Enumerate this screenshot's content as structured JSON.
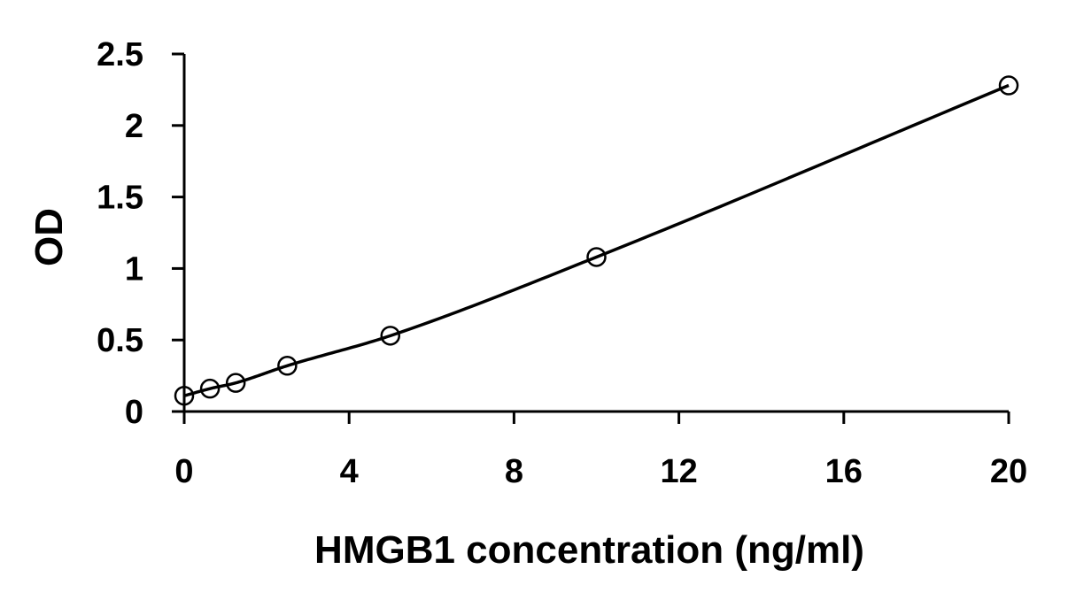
{
  "chart_data": {
    "type": "scatter",
    "title": "",
    "xlabel": "HMGB1 concentration (ng/ml)",
    "ylabel": "OD",
    "xlim": [
      0,
      20
    ],
    "ylim": [
      0,
      2.5
    ],
    "x_ticks": [
      "0",
      "4",
      "8",
      "12",
      "16",
      "20"
    ],
    "y_ticks": [
      "0",
      "0.5",
      "1",
      "1.5",
      "2",
      "2.5"
    ],
    "grid": false,
    "legend": "none",
    "marker": "open-circle",
    "trendline": "smooth-fit",
    "series": [
      {
        "x": [
          0,
          0.625,
          1.25,
          2.5,
          5,
          10,
          20
        ],
        "y": [
          0.11,
          0.16,
          0.2,
          0.32,
          0.53,
          1.08,
          2.28
        ]
      }
    ]
  }
}
